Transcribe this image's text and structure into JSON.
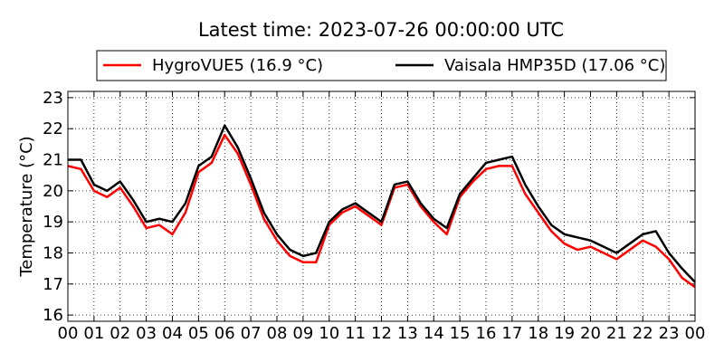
{
  "chart_data": {
    "type": "line",
    "title": "Latest time: 2023-07-26 00:00:00 UTC",
    "y_label": "Temperature (°C)",
    "x": [
      0,
      0.5,
      1,
      1.5,
      2,
      2.5,
      3,
      3.5,
      4,
      4.5,
      5,
      5.5,
      6,
      6.5,
      7,
      7.5,
      8,
      8.5,
      9,
      9.5,
      10,
      10.5,
      11,
      11.5,
      12,
      12.5,
      13,
      13.5,
      14,
      14.5,
      15,
      15.5,
      16,
      16.5,
      17,
      17.5,
      18,
      18.5,
      19,
      19.5,
      20,
      20.5,
      21,
      21.5,
      22,
      22.5,
      23,
      23.5,
      24
    ],
    "series": [
      {
        "name": "HygroVUE5 (16.9 °C)",
        "color": "#ff0000",
        "values": [
          20.8,
          20.7,
          20.0,
          19.8,
          20.1,
          19.5,
          18.8,
          18.9,
          18.6,
          19.3,
          20.6,
          20.9,
          21.8,
          21.2,
          20.2,
          19.1,
          18.4,
          17.9,
          17.7,
          17.7,
          18.9,
          19.3,
          19.5,
          19.2,
          18.9,
          20.1,
          20.2,
          19.5,
          19.0,
          18.6,
          19.8,
          20.3,
          20.7,
          20.8,
          20.8,
          19.9,
          19.3,
          18.7,
          18.3,
          18.1,
          18.2,
          18.0,
          17.8,
          18.1,
          18.4,
          18.2,
          17.8,
          17.2,
          16.9
        ]
      },
      {
        "name": "Vaisala HMP35D (17.06 °C)",
        "color": "#000000",
        "values": [
          21.0,
          21.0,
          20.2,
          20.0,
          20.3,
          19.7,
          19.0,
          19.1,
          19.0,
          19.6,
          20.8,
          21.1,
          22.1,
          21.4,
          20.4,
          19.3,
          18.6,
          18.1,
          17.9,
          18.0,
          19.0,
          19.4,
          19.6,
          19.3,
          19.0,
          20.2,
          20.3,
          19.6,
          19.1,
          18.8,
          19.9,
          20.4,
          20.9,
          21.0,
          21.1,
          20.2,
          19.5,
          18.9,
          18.6,
          18.5,
          18.4,
          18.2,
          18.0,
          18.3,
          18.6,
          18.7,
          18.0,
          17.5,
          17.06
        ]
      }
    ],
    "xlim": [
      0,
      24
    ],
    "xticks": [
      {
        "value": 0,
        "label": "00"
      },
      {
        "value": 1,
        "label": "01"
      },
      {
        "value": 2,
        "label": "02"
      },
      {
        "value": 3,
        "label": "03"
      },
      {
        "value": 4,
        "label": "04"
      },
      {
        "value": 5,
        "label": "05"
      },
      {
        "value": 6,
        "label": "06"
      },
      {
        "value": 7,
        "label": "07"
      },
      {
        "value": 8,
        "label": "08"
      },
      {
        "value": 9,
        "label": "09"
      },
      {
        "value": 10,
        "label": "10"
      },
      {
        "value": 11,
        "label": "11"
      },
      {
        "value": 12,
        "label": "12"
      },
      {
        "value": 13,
        "label": "13"
      },
      {
        "value": 14,
        "label": "14"
      },
      {
        "value": 15,
        "label": "15"
      },
      {
        "value": 16,
        "label": "16"
      },
      {
        "value": 17,
        "label": "17"
      },
      {
        "value": 18,
        "label": "18"
      },
      {
        "value": 19,
        "label": "19"
      },
      {
        "value": 20,
        "label": "20"
      },
      {
        "value": 21,
        "label": "21"
      },
      {
        "value": 22,
        "label": "22"
      },
      {
        "value": 23,
        "label": "23"
      },
      {
        "value": 24,
        "label": "00"
      }
    ],
    "ylim": [
      15.8,
      23.2
    ],
    "yticks": [
      16,
      17,
      18,
      19,
      20,
      21,
      22,
      23
    ],
    "grid": true,
    "legend": "top"
  }
}
